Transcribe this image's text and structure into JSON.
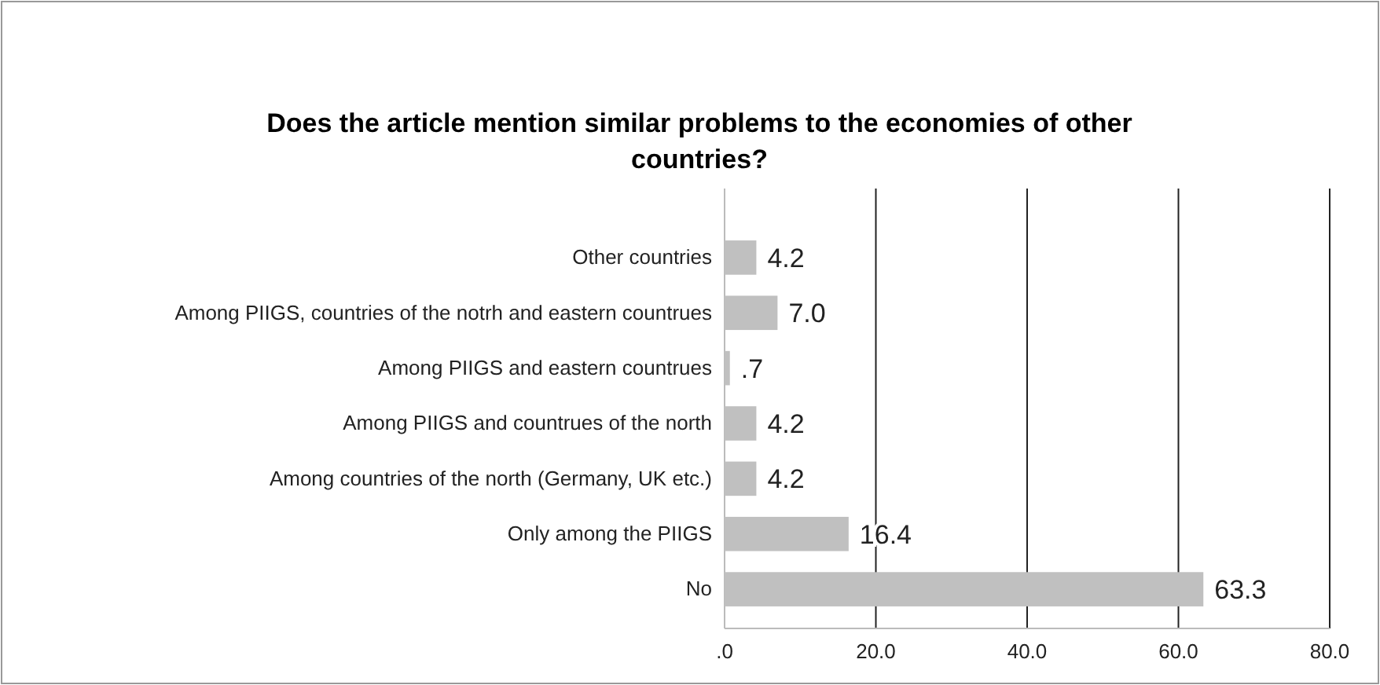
{
  "chart_data": {
    "type": "bar",
    "orientation": "horizontal",
    "title": "Does the article mention similar problems to the economies of other countries?",
    "categories": [
      "Other countries",
      "Among PIIGS, countries of the notrh and eastern countrues",
      "Among PIIGS and eastern countrues",
      "Among PIIGS and countrues of the north",
      "Among countries of the north (Germany, UK etc.)",
      "Only among the PIIGS",
      "No"
    ],
    "values": [
      4.2,
      7.0,
      0.7,
      4.2,
      4.2,
      16.4,
      63.3
    ],
    "value_labels": [
      "4.2",
      "7.0",
      ".7",
      "4.2",
      "4.2",
      "16.4",
      "63.3"
    ],
    "color": "#c0c0c0",
    "xlim": [
      0,
      80
    ],
    "xticks": [
      {
        "value": 0,
        "label": ".0"
      },
      {
        "value": 20,
        "label": "20.0"
      },
      {
        "value": 40,
        "label": "40.0"
      },
      {
        "value": 60,
        "label": "60.0"
      },
      {
        "value": 80,
        "label": "80.0"
      }
    ],
    "grid": "x"
  }
}
